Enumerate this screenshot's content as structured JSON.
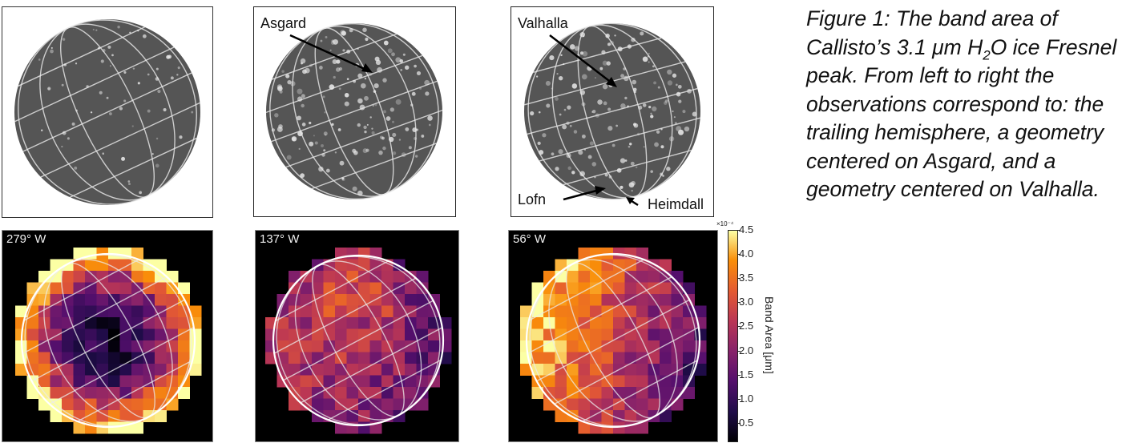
{
  "top_panels": [
    {
      "labels": []
    },
    {
      "labels": [
        "Asgard"
      ]
    },
    {
      "labels": [
        "Valhalla",
        "Lofn",
        "Heimdall"
      ]
    }
  ],
  "chart_data": {
    "type": "heatmap",
    "panels": [
      {
        "title": "279° W"
      },
      {
        "title": "137° W"
      },
      {
        "title": "56° W"
      }
    ],
    "colorbar": {
      "label": "Band Area [μm]",
      "scale": "×10⁻⁴",
      "ticks": [
        "0.5",
        "1.0",
        "1.5",
        "2.0",
        "2.5",
        "3.0",
        "3.5",
        "4.0",
        "4.5"
      ],
      "range": [
        0.1,
        4.5
      ],
      "colormap": "inferno"
    }
  },
  "caption": {
    "text_before": "Figure 1: The band area of Callisto’s 3.1 μm H",
    "sub": "2",
    "text_after": "O ice Fresnel peak. From left to right the observations correspond to: the trailing hemisphere, a geometry centered on Asgard, and a geometry centered on Valhalla."
  }
}
